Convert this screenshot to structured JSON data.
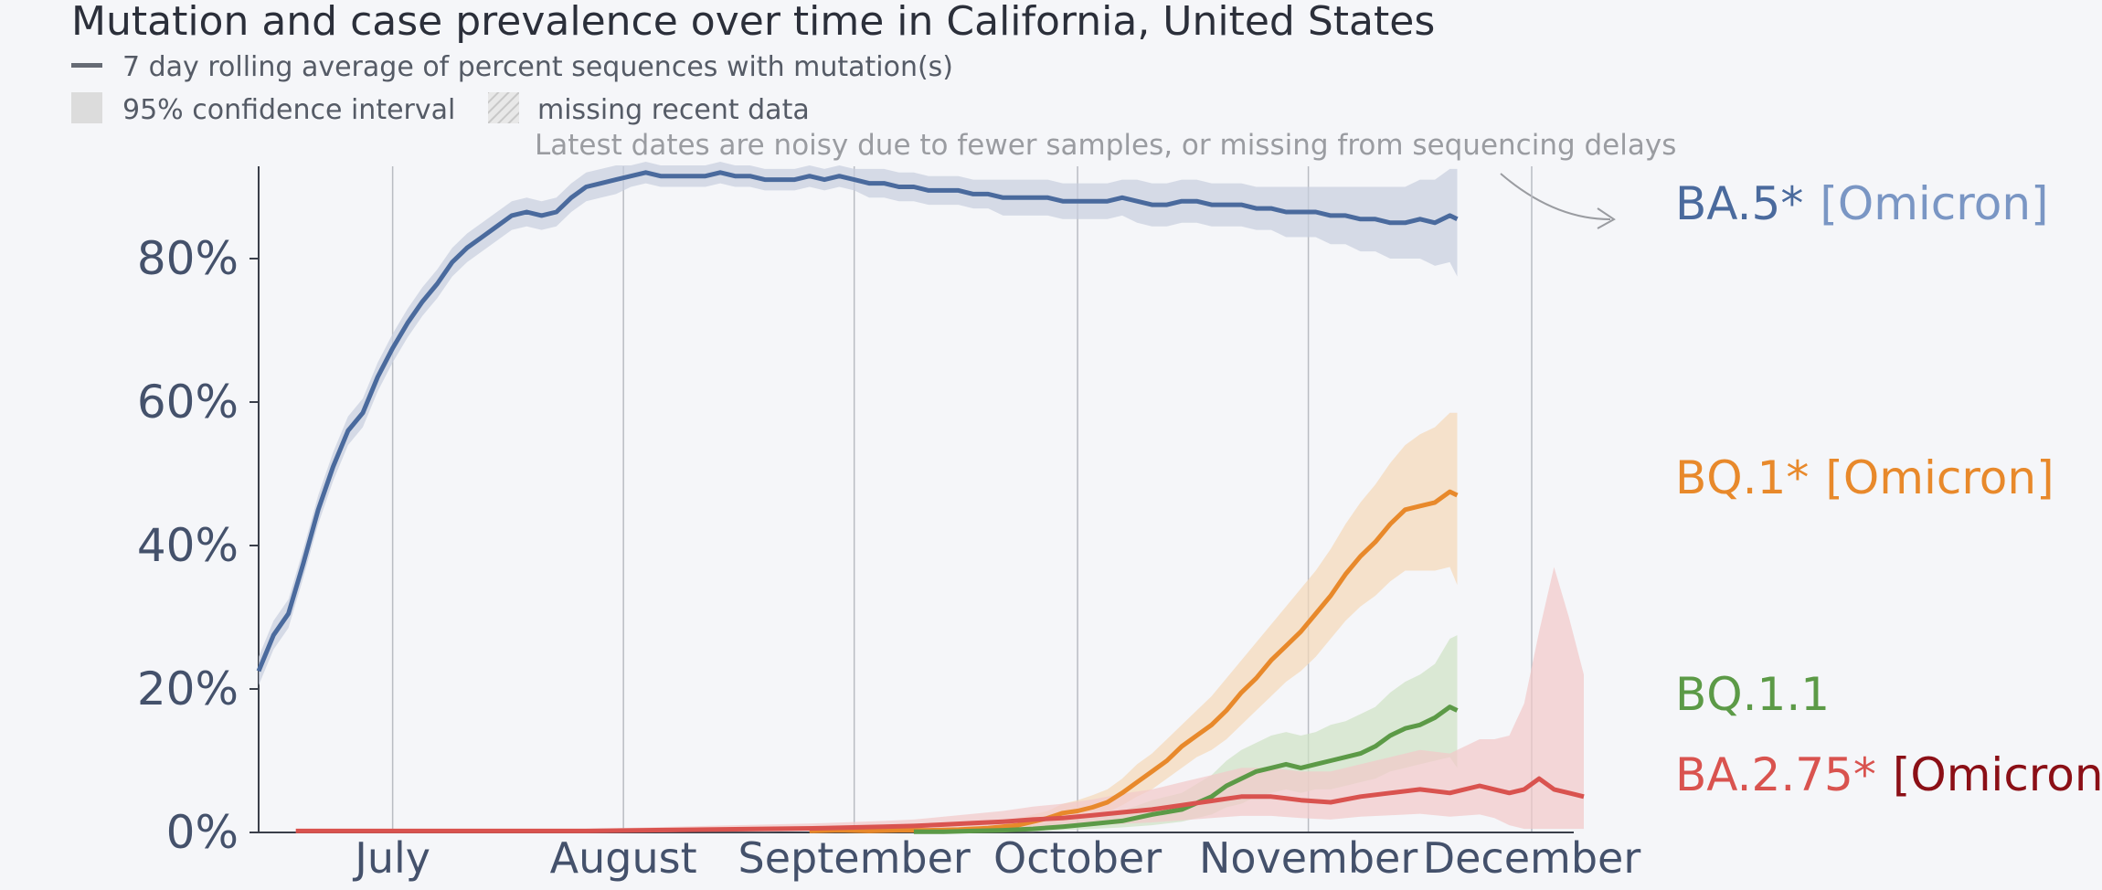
{
  "chart_data": {
    "type": "line",
    "title": "Mutation and case prevalence over time in California, United States",
    "legend": {
      "line": "7 day rolling average of percent sequences with mutation(s)",
      "ci": "95% confidence interval",
      "missing": "missing recent data"
    },
    "note": "Latest dates are noisy due to fewer samples, or missing from sequencing delays",
    "y_ticks": [
      "0%",
      "20%",
      "40%",
      "60%",
      "80%"
    ],
    "y_tick_values": [
      0,
      20,
      40,
      60,
      80
    ],
    "x_ticks": [
      "July",
      "August",
      "September",
      "October",
      "November",
      "December"
    ],
    "x_tick_days": [
      30,
      61,
      92,
      122,
      153,
      183
    ],
    "ylim": [
      0,
      93
    ],
    "xlim": [
      12,
      190
    ],
    "x_unit": "days since June 1, 2022",
    "grid": "vertical at month starts",
    "series": [
      {
        "name": "BA.5*",
        "label_main": "BA.5*",
        "label_tag": "[Omicron]",
        "color": "#4a6a9d",
        "tag_color": "#7a96c4",
        "band_color": "#c7cfde",
        "x": [
          12,
          14,
          16,
          18,
          20,
          22,
          24,
          26,
          28,
          30,
          32,
          34,
          36,
          38,
          40,
          42,
          44,
          46,
          48,
          50,
          52,
          54,
          56,
          58,
          60,
          62,
          64,
          66,
          68,
          70,
          72,
          74,
          76,
          78,
          80,
          82,
          84,
          86,
          88,
          90,
          92,
          94,
          96,
          98,
          100,
          102,
          104,
          106,
          108,
          110,
          112,
          114,
          116,
          118,
          120,
          122,
          124,
          126,
          128,
          130,
          132,
          134,
          136,
          138,
          140,
          142,
          144,
          146,
          148,
          150,
          152,
          154,
          156,
          158,
          160,
          162,
          164,
          166,
          168,
          170,
          172,
          173
        ],
        "y": [
          22.5,
          27.5,
          30.5,
          37.5,
          45.0,
          51.0,
          56.0,
          58.5,
          63.5,
          67.5,
          71.0,
          74.0,
          76.5,
          79.5,
          81.5,
          83.0,
          84.5,
          86.0,
          86.5,
          86.0,
          86.5,
          88.5,
          90.0,
          90.5,
          91.0,
          91.5,
          92.0,
          91.5,
          91.5,
          91.5,
          91.5,
          92.0,
          91.5,
          91.5,
          91.0,
          91.0,
          91.0,
          91.5,
          91.0,
          91.5,
          91.0,
          90.5,
          90.5,
          90.0,
          90.0,
          89.5,
          89.5,
          89.5,
          89.0,
          89.0,
          88.5,
          88.5,
          88.5,
          88.5,
          88.0,
          88.0,
          88.0,
          88.0,
          88.5,
          88.0,
          87.5,
          87.5,
          88.0,
          88.0,
          87.5,
          87.5,
          87.5,
          87.0,
          87.0,
          86.5,
          86.5,
          86.5,
          86.0,
          86.0,
          85.5,
          85.5,
          85.0,
          85.0,
          85.5,
          85.0,
          86.0,
          85.5
        ],
        "hi": [
          24.5,
          29.5,
          32.5,
          39.5,
          47.0,
          53.0,
          58.0,
          60.5,
          65.5,
          69.5,
          73.0,
          76.0,
          78.5,
          81.5,
          83.5,
          85.0,
          86.5,
          88.0,
          88.5,
          88.0,
          88.5,
          90.5,
          92.0,
          92.5,
          93.0,
          93.0,
          93.5,
          93.0,
          93.0,
          93.0,
          93.0,
          93.5,
          93.0,
          93.0,
          92.5,
          92.5,
          92.5,
          93.0,
          92.5,
          93.0,
          92.5,
          92.5,
          92.5,
          92.0,
          92.0,
          91.5,
          91.5,
          91.5,
          91.0,
          91.0,
          91.0,
          91.0,
          91.0,
          91.0,
          90.5,
          90.5,
          90.5,
          90.5,
          91.0,
          91.0,
          90.5,
          90.5,
          91.0,
          91.0,
          90.5,
          90.5,
          90.5,
          90.0,
          90.0,
          90.0,
          90.0,
          90.0,
          90.0,
          90.0,
          90.0,
          90.0,
          90.0,
          90.0,
          91.0,
          91.0,
          92.5,
          92.5
        ],
        "lo": [
          20.5,
          25.5,
          28.5,
          35.5,
          43.0,
          49.0,
          54.0,
          56.5,
          61.5,
          65.5,
          69.0,
          72.0,
          74.5,
          77.5,
          79.5,
          81.0,
          82.5,
          84.0,
          84.5,
          84.0,
          84.5,
          86.5,
          88.0,
          88.5,
          89.0,
          90.0,
          90.5,
          90.0,
          90.0,
          90.0,
          90.0,
          90.5,
          90.0,
          90.0,
          89.5,
          89.5,
          89.5,
          90.0,
          89.5,
          90.0,
          89.5,
          88.5,
          88.5,
          88.0,
          88.0,
          87.5,
          87.5,
          87.5,
          87.0,
          87.0,
          86.0,
          86.0,
          86.0,
          86.0,
          85.5,
          85.5,
          85.5,
          85.5,
          86.0,
          85.0,
          84.5,
          84.5,
          85.0,
          85.0,
          84.5,
          84.5,
          84.5,
          84.0,
          84.0,
          83.0,
          83.0,
          83.0,
          82.0,
          82.0,
          81.0,
          81.0,
          80.0,
          80.0,
          80.0,
          79.0,
          79.5,
          77.5
        ]
      },
      {
        "name": "BQ.1*",
        "label_main": "BQ.1*",
        "label_tag": "[Omicron]",
        "color": "#e8892b",
        "tag_color": "#e8892b",
        "band_color": "#f5d8b8",
        "x": [
          86,
          90,
          94,
          98,
          102,
          106,
          110,
          114,
          118,
          120,
          122,
          124,
          126,
          128,
          130,
          132,
          134,
          136,
          138,
          140,
          142,
          144,
          146,
          148,
          150,
          152,
          154,
          156,
          158,
          160,
          162,
          164,
          166,
          168,
          170,
          172,
          173
        ],
        "y": [
          0.2,
          0.3,
          0.2,
          0.3,
          0.3,
          0.4,
          0.6,
          1.0,
          2.0,
          2.7,
          3.0,
          3.5,
          4.2,
          5.5,
          7.0,
          8.5,
          10.0,
          12.0,
          13.5,
          15.0,
          17.0,
          19.5,
          21.5,
          24.0,
          26.0,
          28.0,
          30.5,
          33.0,
          36.0,
          38.5,
          40.5,
          43.0,
          45.0,
          45.5,
          46.0,
          47.5,
          47.0
        ],
        "hi": [
          0.4,
          0.5,
          0.4,
          0.5,
          0.6,
          0.8,
          1.2,
          2.0,
          3.0,
          4.0,
          4.5,
          5.2,
          6.0,
          7.5,
          9.5,
          11.0,
          13.0,
          15.0,
          17.0,
          19.0,
          21.5,
          24.0,
          26.5,
          29.0,
          31.5,
          34.0,
          36.5,
          39.5,
          43.0,
          46.0,
          48.5,
          51.5,
          54.0,
          55.5,
          56.5,
          58.5,
          58.5
        ],
        "lo": [
          0.0,
          0.1,
          0.0,
          0.1,
          0.1,
          0.1,
          0.2,
          0.4,
          1.0,
          1.5,
          1.8,
          2.2,
          2.8,
          3.8,
          5.0,
          6.0,
          7.5,
          9.0,
          10.5,
          11.5,
          13.0,
          15.0,
          17.0,
          19.0,
          21.0,
          22.5,
          24.5,
          27.0,
          29.5,
          31.5,
          33.0,
          35.0,
          36.5,
          36.5,
          36.5,
          37.0,
          34.5
        ]
      },
      {
        "name": "BQ.1.1",
        "label_main": "BQ.1.1",
        "label_tag": "",
        "color": "#5c9a47",
        "tag_color": "#5c9a47",
        "band_color": "#cfe3c4",
        "x": [
          100,
          104,
          108,
          112,
          116,
          120,
          124,
          128,
          132,
          136,
          140,
          142,
          144,
          146,
          148,
          150,
          152,
          154,
          156,
          158,
          160,
          162,
          164,
          166,
          168,
          170,
          172,
          173
        ],
        "y": [
          0.1,
          0.1,
          0.2,
          0.3,
          0.5,
          0.8,
          1.2,
          1.6,
          2.5,
          3.2,
          5.0,
          6.5,
          7.5,
          8.5,
          9.0,
          9.5,
          9.0,
          9.5,
          10.0,
          10.5,
          11.0,
          12.0,
          13.5,
          14.5,
          15.0,
          16.0,
          17.5,
          17.0
        ],
        "hi": [
          0.3,
          0.3,
          0.5,
          0.7,
          1.0,
          1.5,
          2.2,
          3.0,
          4.5,
          5.5,
          8.0,
          10.0,
          11.5,
          12.5,
          13.5,
          14.0,
          13.5,
          14.0,
          15.0,
          15.5,
          16.5,
          17.5,
          19.5,
          21.0,
          22.0,
          23.5,
          27.0,
          27.5
        ],
        "lo": [
          0.0,
          0.0,
          0.0,
          0.1,
          0.1,
          0.3,
          0.5,
          0.7,
          1.0,
          1.5,
          2.5,
          3.5,
          4.0,
          5.0,
          5.5,
          6.0,
          5.5,
          6.0,
          6.0,
          6.5,
          7.0,
          7.5,
          8.5,
          9.0,
          9.5,
          10.0,
          10.5,
          9.0
        ]
      },
      {
        "name": "BA.2.75*",
        "label_main": "BA.2.75*",
        "label_tag": "[Omicron]",
        "color": "#d9534f",
        "tag_color": "#8b0f16",
        "band_color": "#f2c9c9",
        "x": [
          17,
          24,
          32,
          40,
          48,
          56,
          64,
          72,
          80,
          88,
          96,
          100,
          104,
          108,
          112,
          116,
          120,
          124,
          128,
          132,
          136,
          140,
          144,
          148,
          152,
          156,
          160,
          164,
          168,
          172,
          176,
          178,
          180,
          182,
          184,
          186,
          188,
          190
        ],
        "y": [
          0.2,
          0.2,
          0.2,
          0.2,
          0.2,
          0.2,
          0.3,
          0.4,
          0.5,
          0.6,
          0.8,
          0.9,
          1.1,
          1.3,
          1.5,
          1.8,
          2.0,
          2.4,
          2.8,
          3.2,
          3.8,
          4.4,
          5.0,
          5.0,
          4.5,
          4.2,
          5.0,
          5.5,
          6.0,
          5.5,
          6.5,
          6.0,
          5.5,
          6.0,
          7.5,
          6.0,
          5.5,
          5.0
        ],
        "hi": [
          0.4,
          0.4,
          0.4,
          0.4,
          0.4,
          0.5,
          0.7,
          0.9,
          1.1,
          1.3,
          1.6,
          1.8,
          2.2,
          2.6,
          3.0,
          3.6,
          4.0,
          4.6,
          5.4,
          6.0,
          7.0,
          8.0,
          9.0,
          9.0,
          8.5,
          8.5,
          9.5,
          10.5,
          11.5,
          11.0,
          13.0,
          13.0,
          13.5,
          18.0,
          28.0,
          37.0,
          30.0,
          22.0
        ],
        "lo": [
          0.0,
          0.0,
          0.0,
          0.0,
          0.0,
          0.0,
          0.0,
          0.1,
          0.1,
          0.2,
          0.2,
          0.3,
          0.4,
          0.5,
          0.6,
          0.7,
          0.8,
          1.0,
          1.2,
          1.4,
          1.7,
          2.0,
          2.3,
          2.3,
          2.0,
          1.8,
          2.2,
          2.4,
          2.6,
          2.2,
          2.5,
          2.0,
          1.0,
          0.5,
          0.5,
          0.5,
          0.5,
          0.5
        ]
      }
    ]
  }
}
